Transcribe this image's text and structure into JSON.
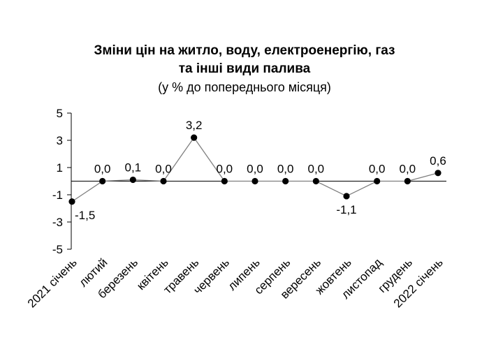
{
  "chart_data": {
    "type": "line",
    "title_lines": [
      "Зміни цін на житло, воду, електроенергію, газ",
      "та інші види палива"
    ],
    "subtitle": "(у % до попереднього місяця)",
    "xlabel": "",
    "ylabel": "",
    "categories": [
      "2021 січень",
      "лютий",
      "березень",
      "квітень",
      "травень",
      "червень",
      "липень",
      "серпень",
      "вересень",
      "жовтень",
      "листопад",
      "грудень",
      "2022 січень"
    ],
    "values": [
      -1.5,
      0.0,
      0.1,
      0.0,
      3.2,
      0.0,
      0.0,
      0.0,
      0.0,
      -1.1,
      0.0,
      0.0,
      0.6
    ],
    "data_labels": [
      "-1,5",
      "0,0",
      "0,1",
      "0,0",
      "3,2",
      "0,0",
      "0,0",
      "0,0",
      "0,0",
      "-1,1",
      "0,0",
      "0,0",
      "0,6"
    ],
    "yticks": [
      5,
      3,
      1,
      -1,
      -3,
      -5
    ],
    "ytick_labels": [
      "5",
      "3",
      "1",
      "-1",
      "-3",
      "-5"
    ],
    "ylim": [
      -5,
      5
    ],
    "grid": false,
    "legend": false,
    "line_color": "#7f7f7f",
    "marker_color": "#000000"
  }
}
